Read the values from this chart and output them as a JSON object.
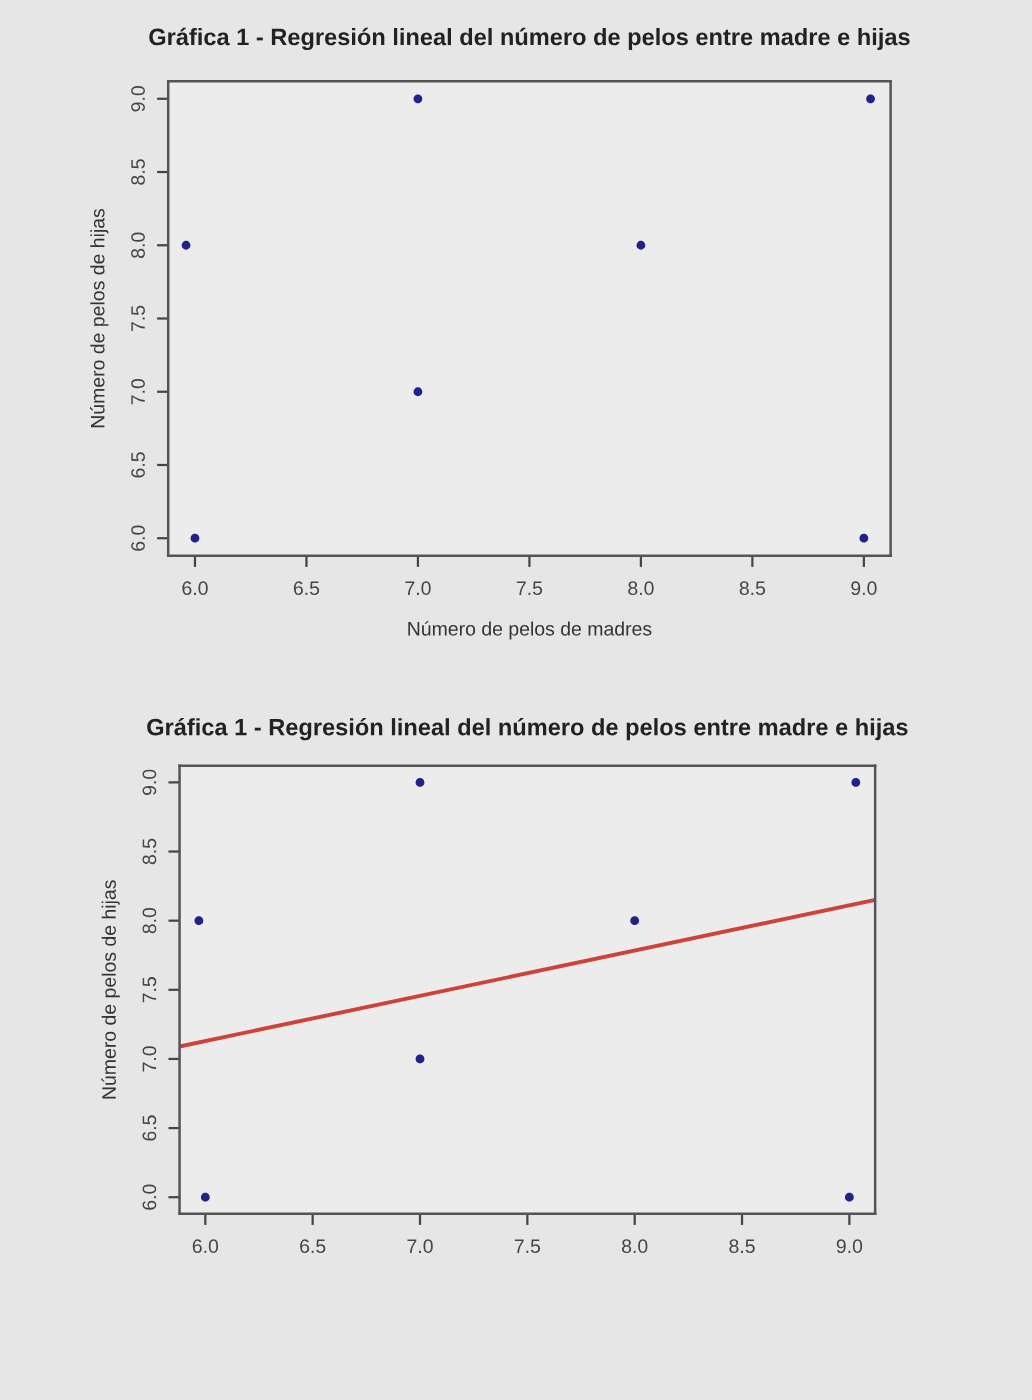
{
  "chart_data": [
    {
      "type": "scatter",
      "title": "Gráfica 1 - Regresión lineal del número de pelos entre madre e hijas",
      "xlabel": "Número de pelos de madres",
      "ylabel": "Número de pelos de hijas",
      "marker": "circle",
      "series": [
        {
          "color": "#22228a",
          "x": [
            5.96,
            6.0,
            7.0,
            7.0,
            8.0,
            9.03,
            9.0
          ],
          "values": [
            8.0,
            6.0,
            9.0,
            7.0,
            8.0,
            9.0,
            6.0
          ]
        }
      ],
      "xlim": [
        5.88,
        9.12
      ],
      "ylim": [
        5.88,
        9.12
      ],
      "xticks": [
        {
          "value": 6,
          "label": "6.0"
        },
        {
          "value": 6.5,
          "label": "6.5"
        },
        {
          "value": 7,
          "label": "7.0"
        },
        {
          "value": 7.5,
          "label": "7.5"
        },
        {
          "value": 8,
          "label": "8.0"
        },
        {
          "value": 8.5,
          "label": "8.5"
        },
        {
          "value": 9,
          "label": "9.0"
        }
      ],
      "yticks": [
        {
          "value": 6,
          "label": "6.0"
        },
        {
          "value": 6.5,
          "label": "6.5"
        },
        {
          "value": 7,
          "label": "7.0"
        },
        {
          "value": 7.5,
          "label": "7.5"
        },
        {
          "value": 8,
          "label": "8.0"
        },
        {
          "value": 8.5,
          "label": "8.5"
        },
        {
          "value": 9,
          "label": "9.0"
        }
      ]
    },
    {
      "type": "scatter",
      "title": "Gráfica 1 - Regresión lineal del número de pelos entre madre e hijas",
      "ylabel": "Número de pelos de hijas",
      "marker": "circle",
      "series": [
        {
          "color": "#22228a",
          "x": [
            5.97,
            6.0,
            7.0,
            7.0,
            8.0,
            9.03,
            9.0
          ],
          "values": [
            8.0,
            6.0,
            9.0,
            7.0,
            8.0,
            9.0,
            6.0
          ]
        },
        {
          "type": "line",
          "marker": "none",
          "color": "#d0413a",
          "x": [
            5.88,
            9.12
          ],
          "values": [
            7.09,
            8.15
          ]
        }
      ],
      "xlim": [
        5.88,
        9.12
      ],
      "ylim": [
        5.88,
        9.12
      ],
      "xticks": [
        {
          "value": 6,
          "label": "6.0"
        },
        {
          "value": 6.5,
          "label": "6.5"
        },
        {
          "value": 7,
          "label": "7.0"
        },
        {
          "value": 7.5,
          "label": "7.5"
        },
        {
          "value": 8,
          "label": "8.0"
        },
        {
          "value": 8.5,
          "label": "8.5"
        },
        {
          "value": 9,
          "label": "9.0"
        }
      ],
      "yticks": [
        {
          "value": 6,
          "label": "6.0"
        },
        {
          "value": 6.5,
          "label": "6.5"
        },
        {
          "value": 7,
          "label": "7.0"
        },
        {
          "value": 7.5,
          "label": "7.5"
        },
        {
          "value": 8,
          "label": "8.0"
        },
        {
          "value": 8.5,
          "label": "8.5"
        },
        {
          "value": 9,
          "label": "9.0"
        }
      ]
    }
  ]
}
